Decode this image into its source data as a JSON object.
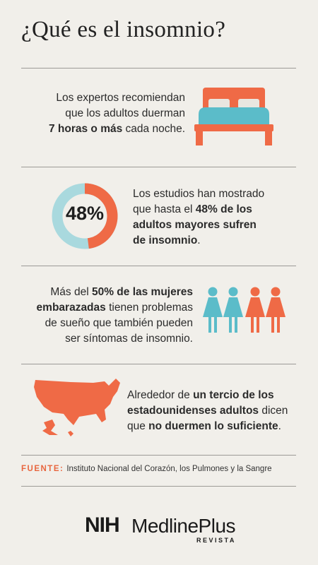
{
  "title": "¿Qué es el insomnio?",
  "section1": {
    "line1": "Los expertos recomiendan",
    "line2": "que los adultos duerman",
    "line3_bold": "7 horas o más",
    "line3_rest": " cada noche."
  },
  "section2": {
    "percent_label": "48%",
    "percent_value": 48,
    "line1": "Los estudios han mostrado",
    "line2_pre": "que hasta el ",
    "line2_bold": "48% de los",
    "line3_bold": "adultos mayores sufren",
    "line4_bold": "de insomnio",
    "line4_rest": "."
  },
  "section3": {
    "line1_pre": "Más del ",
    "line1_bold": "50% de las mujeres",
    "line2_bold": "embarazadas",
    "line2_rest": " tienen problemas",
    "line3": "de sueño que también pueden",
    "line4": "ser síntomas de insomnio."
  },
  "section4": {
    "line1_pre": "Alrededor de ",
    "line1_bold": "un tercio de los",
    "line2_bold": "estadounidenses adultos",
    "line2_rest": " dicen",
    "line3_pre": "que ",
    "line3_bold": "no duermen lo suficiente",
    "line3_rest": "."
  },
  "source": {
    "label": "FUENTE:",
    "text": "Instituto Nacional del Corazón, los Pulmones y la Sangre"
  },
  "logo": {
    "nih": "NIH",
    "medlineplus": "MedlinePlus",
    "revista": "REVISTA"
  },
  "colors": {
    "orange": "#ef6a46",
    "teal": "#5bbcc9",
    "background": "#f1efea"
  }
}
